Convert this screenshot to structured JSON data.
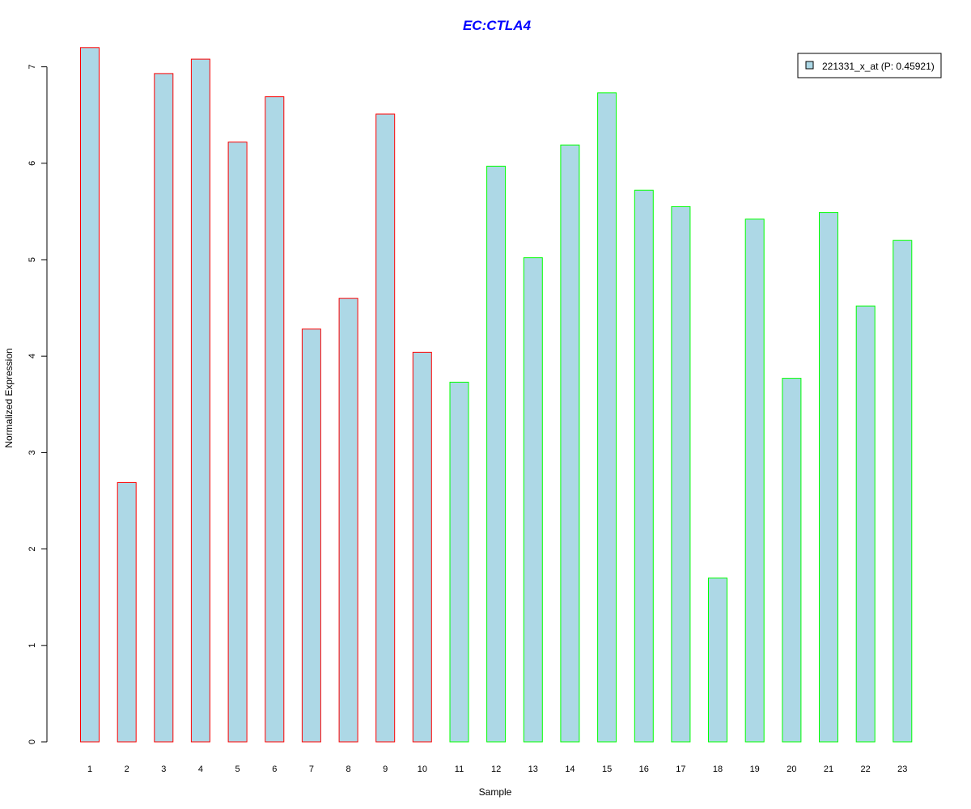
{
  "chart_data": {
    "type": "bar",
    "title": "EC:CTLA4",
    "xlabel": "Sample",
    "ylabel": "Normalized Expression",
    "categories": [
      "1",
      "2",
      "3",
      "4",
      "5",
      "6",
      "7",
      "8",
      "9",
      "10",
      "11",
      "12",
      "13",
      "14",
      "15",
      "16",
      "17",
      "18",
      "19",
      "20",
      "21",
      "22",
      "23"
    ],
    "series": [
      {
        "name": "221331_x_at (P: 0.45921)",
        "values": [
          7.2,
          2.69,
          6.93,
          7.08,
          6.22,
          6.69,
          4.28,
          4.6,
          6.51,
          4.04,
          3.73,
          5.97,
          5.02,
          6.19,
          6.73,
          5.72,
          5.55,
          1.7,
          5.42,
          3.77,
          5.49,
          4.52,
          5.2
        ]
      }
    ],
    "group_border_colors": [
      "#ff0000",
      "#ff0000",
      "#ff0000",
      "#ff0000",
      "#ff0000",
      "#ff0000",
      "#ff0000",
      "#ff0000",
      "#ff0000",
      "#ff0000",
      "#00ff00",
      "#00ff00",
      "#00ff00",
      "#00ff00",
      "#00ff00",
      "#00ff00",
      "#00ff00",
      "#00ff00",
      "#00ff00",
      "#00ff00",
      "#00ff00",
      "#00ff00",
      "#00ff00"
    ],
    "yticks": [
      0,
      1,
      2,
      3,
      4,
      5,
      6,
      7
    ],
    "ylim": [
      0,
      7.2
    ],
    "grid": false,
    "legend_position": "top-right",
    "colors": {
      "bar_fill": "#add8e6",
      "title": "#0000ff",
      "axis": "#000000"
    }
  }
}
